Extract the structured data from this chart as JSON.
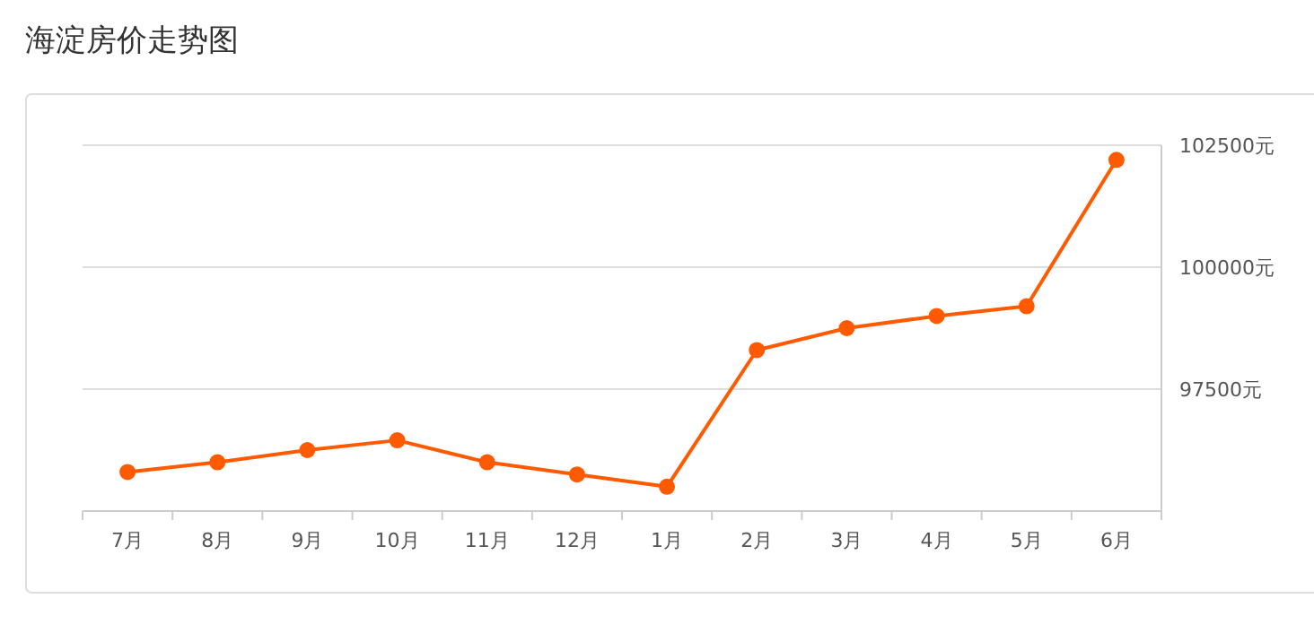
{
  "chart_data": {
    "type": "line",
    "title": "海淀房价走势图",
    "categories": [
      "7月",
      "8月",
      "9月",
      "10月",
      "11月",
      "12月",
      "1月",
      "2月",
      "3月",
      "4月",
      "5月",
      "6月"
    ],
    "series": [
      {
        "color": "#ff5a00",
        "values": [
          95800,
          96000,
          96250,
          96450,
          96000,
          95750,
          95500,
          98300,
          98750,
          99000,
          99200,
          102200
        ]
      }
    ],
    "ylim": [
      95000,
      102500
    ],
    "yticks": [
      {
        "value": 95000,
        "label": null
      },
      {
        "value": 97500,
        "label": "97500元"
      },
      {
        "value": 100000,
        "label": "100000元"
      },
      {
        "value": 102500,
        "label": "102500元"
      }
    ],
    "grid": "y",
    "marker": "circle",
    "line_style": "solid"
  }
}
